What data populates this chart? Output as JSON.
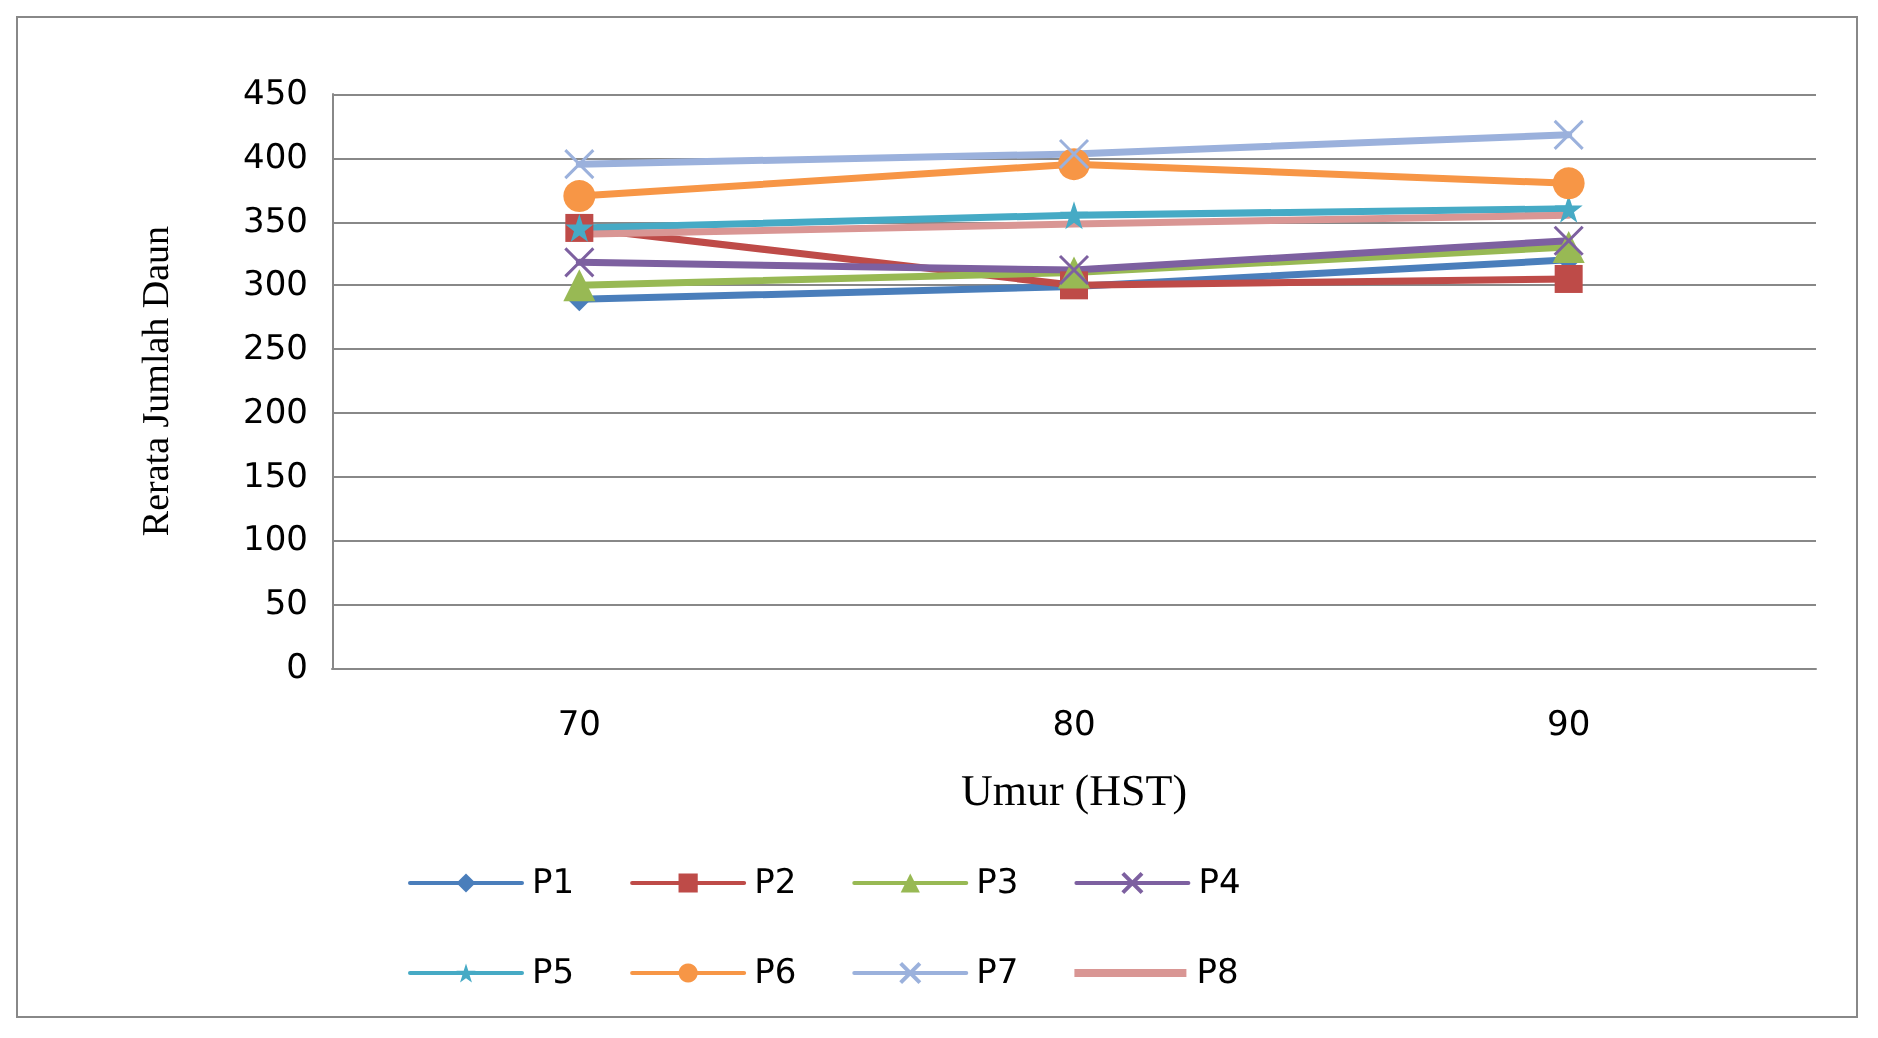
{
  "chart_data": {
    "type": "line",
    "xlabel": "Umur (HST)",
    "ylabel": "Rerata Jumlah Daun",
    "categories": [
      "70",
      "80",
      "90"
    ],
    "ylim": [
      0,
      450
    ],
    "yticks": [
      0,
      50,
      100,
      150,
      200,
      250,
      300,
      350,
      400,
      450
    ],
    "grid": "y",
    "legend": "bottom",
    "series": [
      {
        "name": "P1",
        "color": "#4a7ebb",
        "marker": "diamond",
        "values": [
          289,
          299,
          320
        ]
      },
      {
        "name": "P2",
        "color": "#be4b48",
        "marker": "square",
        "values": [
          345,
          300,
          305
        ]
      },
      {
        "name": "P3",
        "color": "#98b954",
        "marker": "triangle",
        "values": [
          300,
          310,
          330
        ]
      },
      {
        "name": "P4",
        "color": "#7d60a0",
        "marker": "cross",
        "values": [
          318,
          312,
          335
        ]
      },
      {
        "name": "P5",
        "color": "#46aac5",
        "marker": "star",
        "values": [
          345,
          355,
          360
        ]
      },
      {
        "name": "P6",
        "color": "#f79646",
        "marker": "circle",
        "values": [
          370,
          395,
          380
        ]
      },
      {
        "name": "P7",
        "color": "#9bb1dc",
        "marker": "cross",
        "values": [
          395,
          403,
          418
        ]
      },
      {
        "name": "P8",
        "color": "#d99694",
        "marker": "none",
        "values": [
          340,
          348,
          355
        ]
      }
    ]
  }
}
